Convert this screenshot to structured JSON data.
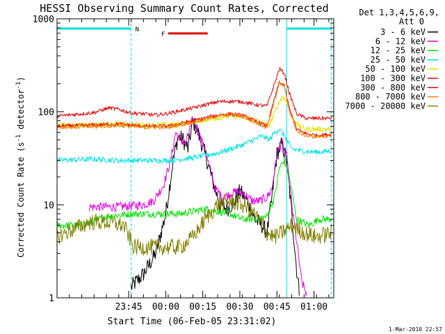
{
  "chart_data": {
    "type": "line",
    "title": "HESSI Observing Summary Count Rates, Corrected",
    "xlabel": "Start Time (06-Feb-05 23:31:02)",
    "ylabel_main": "Corrected Count Rate (s",
    "ylabel_sup1": "-1",
    "ylabel_mid": " detector",
    "ylabel_sup2": "-1",
    "ylabel_end": ")",
    "y_scale": "log",
    "ylim": [
      1,
      1000
    ],
    "xlim_minutes": [
      -15,
      97
    ],
    "x_ticks": [
      {
        "minute": 14,
        "label": "23:45"
      },
      {
        "minute": 29,
        "label": "00:00"
      },
      {
        "minute": 44,
        "label": "00:15"
      },
      {
        "minute": 59,
        "label": "00:30"
      },
      {
        "minute": 74,
        "label": "00:45"
      },
      {
        "minute": 89,
        "label": "01:00"
      }
    ],
    "y_ticks": [
      {
        "value": 1,
        "label": "1"
      },
      {
        "value": 10,
        "label": "10"
      },
      {
        "value": 100,
        "label": "100"
      },
      {
        "value": 1000,
        "label": "1000"
      }
    ],
    "legend_header": [
      "Det 1,3,4,5,6,9,",
      "Att 0"
    ],
    "legend_position": "right",
    "footer": "1-Mar-2010 22:57",
    "flags": [
      {
        "label": "N",
        "start_minute": -15,
        "end_minute": 15,
        "color": "#00e0e0"
      },
      {
        "label": "F",
        "start_minute": 30,
        "end_minute": 46,
        "color": "#e00000"
      }
    ],
    "night_intervals": [
      {
        "start_minute": 15,
        "end_minute": 78,
        "color": "#00e0e0"
      }
    ],
    "night_end_markers": [
      {
        "minute": 78,
        "color": "#00e0e0"
      },
      {
        "minute": 96,
        "color": "#00e0e0"
      }
    ],
    "night_bar_right": {
      "start_minute": 78,
      "end_minute": 96,
      "color": "#00e0e0"
    },
    "series": [
      {
        "name": "3 - 6 keV",
        "color": "#000000",
        "noise": 0.09,
        "points": [
          [
            15,
            1.3
          ],
          [
            20,
            1.8
          ],
          [
            25,
            3
          ],
          [
            29,
            8
          ],
          [
            32,
            30
          ],
          [
            34,
            55
          ],
          [
            36,
            50
          ],
          [
            38,
            40
          ],
          [
            40,
            80
          ],
          [
            42,
            60
          ],
          [
            45,
            35
          ],
          [
            48,
            18
          ],
          [
            51,
            10
          ],
          [
            54,
            9
          ],
          [
            57,
            11
          ],
          [
            59,
            14
          ],
          [
            62,
            11
          ],
          [
            65,
            7
          ],
          [
            68,
            6
          ],
          [
            70,
            5
          ],
          [
            72,
            12
          ],
          [
            74,
            35
          ],
          [
            76,
            45
          ],
          [
            78,
            30
          ],
          [
            80,
            8
          ],
          [
            82,
            2
          ],
          [
            83,
            1.2
          ]
        ]
      },
      {
        "name": "6 - 12 keV",
        "color": "#e000e0",
        "noise": 0.05,
        "points": [
          [
            -2,
            9.5
          ],
          [
            10,
            9.5
          ],
          [
            20,
            10
          ],
          [
            24,
            11
          ],
          [
            28,
            16
          ],
          [
            31,
            30
          ],
          [
            33,
            60
          ],
          [
            35,
            50
          ],
          [
            37,
            45
          ],
          [
            40,
            85
          ],
          [
            43,
            55
          ],
          [
            46,
            30
          ],
          [
            49,
            15
          ],
          [
            52,
            12
          ],
          [
            55,
            13
          ],
          [
            58,
            14
          ],
          [
            61,
            13
          ],
          [
            64,
            11
          ],
          [
            67,
            11
          ],
          [
            70,
            12
          ],
          [
            72,
            15
          ],
          [
            74,
            35
          ],
          [
            76,
            47
          ],
          [
            78,
            32
          ],
          [
            80,
            10
          ],
          [
            82,
            4
          ],
          [
            84,
            1.5
          ],
          [
            86,
            1.1
          ]
        ]
      },
      {
        "name": "12 - 25 keV",
        "color": "#00e000",
        "noise": 0.04,
        "points": [
          [
            -15,
            6
          ],
          [
            -5,
            6
          ],
          [
            5,
            7.5
          ],
          [
            15,
            8
          ],
          [
            25,
            8
          ],
          [
            35,
            8
          ],
          [
            45,
            9
          ],
          [
            55,
            8
          ],
          [
            60,
            7
          ],
          [
            65,
            7
          ],
          [
            70,
            7.5
          ],
          [
            73,
            12
          ],
          [
            75,
            25
          ],
          [
            77,
            30
          ],
          [
            79,
            20
          ],
          [
            82,
            7
          ],
          [
            87,
            6
          ],
          [
            91,
            7
          ],
          [
            96,
            7
          ]
        ]
      },
      {
        "name": "25 - 50 keV",
        "color": "#00e0e0",
        "noise": 0.03,
        "points": [
          [
            -15,
            30
          ],
          [
            0,
            31
          ],
          [
            10,
            30
          ],
          [
            20,
            30
          ],
          [
            30,
            30
          ],
          [
            40,
            32
          ],
          [
            50,
            36
          ],
          [
            60,
            44
          ],
          [
            68,
            55
          ],
          [
            71,
            50
          ],
          [
            73,
            60
          ],
          [
            75,
            65
          ],
          [
            77,
            55
          ],
          [
            80,
            40
          ],
          [
            84,
            38
          ],
          [
            88,
            37
          ],
          [
            92,
            37
          ],
          [
            96,
            38
          ]
        ]
      },
      {
        "name": "50 - 100 keV",
        "color": "#e0e000",
        "noise": 0.03,
        "points": [
          [
            -15,
            72
          ],
          [
            0,
            72
          ],
          [
            10,
            74
          ],
          [
            20,
            72
          ],
          [
            30,
            72
          ],
          [
            40,
            78
          ],
          [
            50,
            86
          ],
          [
            55,
            90
          ],
          [
            60,
            88
          ],
          [
            64,
            85
          ],
          [
            68,
            75
          ],
          [
            71,
            72
          ],
          [
            74,
            110
          ],
          [
            76,
            145
          ],
          [
            78,
            130
          ],
          [
            80,
            90
          ],
          [
            83,
            70
          ],
          [
            86,
            65
          ],
          [
            90,
            65
          ],
          [
            96,
            65
          ]
        ]
      },
      {
        "name": "100 - 300 keV",
        "color": "#e00000",
        "noise": 0.02,
        "points": [
          [
            -15,
            90
          ],
          [
            0,
            98
          ],
          [
            6,
            110
          ],
          [
            10,
            106
          ],
          [
            15,
            97
          ],
          [
            20,
            95
          ],
          [
            25,
            92
          ],
          [
            30,
            96
          ],
          [
            40,
            110
          ],
          [
            50,
            128
          ],
          [
            55,
            130
          ],
          [
            60,
            128
          ],
          [
            65,
            120
          ],
          [
            70,
            115
          ],
          [
            73,
            200
          ],
          [
            75,
            290
          ],
          [
            77,
            260
          ],
          [
            79,
            160
          ],
          [
            82,
            95
          ],
          [
            86,
            85
          ],
          [
            90,
            85
          ],
          [
            96,
            85
          ]
        ]
      },
      {
        "name": "300 - 800 keV",
        "color": "#e00000",
        "noise": 0.02,
        "points": [
          [
            -15,
            70
          ],
          [
            0,
            72
          ],
          [
            10,
            74
          ],
          [
            20,
            70
          ],
          [
            30,
            70
          ],
          [
            40,
            80
          ],
          [
            50,
            92
          ],
          [
            55,
            95
          ],
          [
            60,
            92
          ],
          [
            65,
            80
          ],
          [
            70,
            70
          ],
          [
            72,
            110
          ],
          [
            75,
            210
          ],
          [
            77,
            190
          ],
          [
            79,
            110
          ],
          [
            82,
            65
          ],
          [
            86,
            58
          ],
          [
            90,
            56
          ],
          [
            96,
            57
          ]
        ]
      },
      {
        "name": "800 - 7000 keV",
        "color": "#f08000",
        "noise": 0.02,
        "points": [
          [
            -15,
            68
          ],
          [
            0,
            69
          ],
          [
            10,
            71
          ],
          [
            20,
            68
          ],
          [
            30,
            68
          ],
          [
            40,
            77
          ],
          [
            50,
            90
          ],
          [
            55,
            93
          ],
          [
            60,
            89
          ],
          [
            65,
            77
          ],
          [
            70,
            68
          ],
          [
            72,
            105
          ],
          [
            75,
            205
          ],
          [
            77,
            185
          ],
          [
            79,
            105
          ],
          [
            82,
            62
          ],
          [
            86,
            55
          ],
          [
            90,
            54
          ],
          [
            96,
            55
          ]
        ]
      },
      {
        "name": "7000 - 20000 keV",
        "color": "#808000",
        "noise": 0.09,
        "points": [
          [
            -15,
            4.5
          ],
          [
            -8,
            5.5
          ],
          [
            -2,
            6.5
          ],
          [
            5,
            6.5
          ],
          [
            12,
            6
          ],
          [
            16,
            3.5
          ],
          [
            25,
            3.5
          ],
          [
            35,
            3.5
          ],
          [
            40,
            4.5
          ],
          [
            45,
            7
          ],
          [
            50,
            10
          ],
          [
            55,
            11
          ],
          [
            60,
            10
          ],
          [
            65,
            8
          ],
          [
            70,
            5
          ],
          [
            73,
            4.5
          ],
          [
            76,
            5
          ],
          [
            80,
            6
          ],
          [
            85,
            5
          ],
          [
            90,
            4.5
          ],
          [
            96,
            5
          ]
        ]
      }
    ]
  }
}
